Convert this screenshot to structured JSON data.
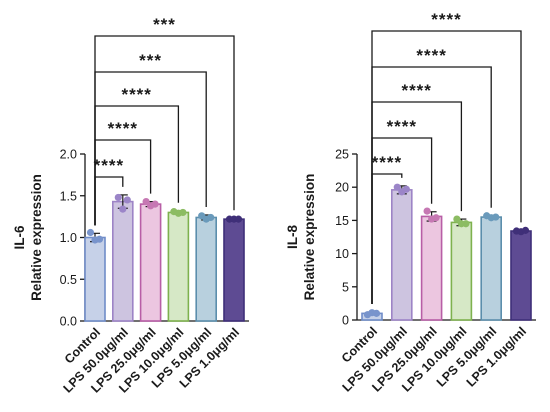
{
  "chart_data": [
    {
      "type": "bar",
      "title": "",
      "xlabel": "",
      "ylabel_lines": [
        "IL-6",
        "Relative expression"
      ],
      "ylim": [
        0,
        2.0
      ],
      "yticks": [
        "0.0",
        "0.5",
        "1.0",
        "1.5",
        "2.0"
      ],
      "categories": [
        "Control",
        "LPS 50.0μg/ml",
        "LPS 25.0μg/ml",
        "LPS 10.0μg/ml",
        "LPS 5.0μg/ml",
        "LPS 1.0μg/ml"
      ],
      "values": [
        1.0,
        1.43,
        1.4,
        1.3,
        1.24,
        1.22
      ],
      "errors": [
        0.05,
        0.08,
        0.03,
        0.02,
        0.03,
        0.01
      ],
      "points": [
        [
          1.06,
          0.97,
          0.98
        ],
        [
          1.48,
          1.34,
          1.45
        ],
        [
          1.43,
          1.38,
          1.4
        ],
        [
          1.31,
          1.29,
          1.3
        ],
        [
          1.26,
          1.22,
          1.24
        ],
        [
          1.22,
          1.22,
          1.22
        ]
      ],
      "comparisons": [
        {
          "from": "Control",
          "to": "LPS 50.0μg/ml",
          "label": "****"
        },
        {
          "from": "Control",
          "to": "LPS 25.0μg/ml",
          "label": "****"
        },
        {
          "from": "Control",
          "to": "LPS 10.0μg/ml",
          "label": "****"
        },
        {
          "from": "Control",
          "to": "LPS 5.0μg/ml",
          "label": "***"
        },
        {
          "from": "Control",
          "to": "LPS 1.0μg/ml",
          "label": "***"
        }
      ],
      "colors": {
        "fill": [
          "#c6d1e8",
          "#cdc4e0",
          "#ecc6e0",
          "#d6e8c6",
          "#b8d0de",
          "#5e4b93"
        ],
        "stroke": [
          "#6f8cc8",
          "#9d84c6",
          "#b85ea6",
          "#7eb14e",
          "#5b8eac",
          "#3f2f78"
        ],
        "points": [
          "#7894cc",
          "#9b85c8",
          "#c678b3",
          "#8cbc63",
          "#6a9abb",
          "#3f2f78"
        ]
      }
    },
    {
      "type": "bar",
      "title": "",
      "xlabel": "",
      "ylabel_lines": [
        "IL-8",
        "Relative expression"
      ],
      "ylim": [
        0,
        25
      ],
      "yticks": [
        "0",
        "5",
        "10",
        "15",
        "20",
        "25"
      ],
      "categories": [
        "Control",
        "LPS 50.0μg/ml",
        "LPS 25.0μg/ml",
        "LPS 10.0μg/ml",
        "LPS 5.0μg/ml",
        "LPS 1.0μg/ml"
      ],
      "values": [
        1.0,
        19.6,
        15.6,
        14.7,
        15.5,
        13.4
      ],
      "errors": [
        0.2,
        0.6,
        0.7,
        0.5,
        0.2,
        0.1
      ],
      "points": [
        [
          0.8,
          1.1,
          1.0
        ],
        [
          20.0,
          19.3,
          19.7
        ],
        [
          16.4,
          15.2,
          15.4
        ],
        [
          15.2,
          14.5,
          14.5
        ],
        [
          15.7,
          15.4,
          15.5
        ],
        [
          13.4,
          13.3,
          13.5
        ]
      ],
      "comparisons": [
        {
          "from": "Control",
          "to": "LPS 50.0μg/ml",
          "label": "****"
        },
        {
          "from": "Control",
          "to": "LPS 25.0μg/ml",
          "label": "****"
        },
        {
          "from": "Control",
          "to": "LPS 10.0μg/ml",
          "label": "****"
        },
        {
          "from": "Control",
          "to": "LPS 5.0μg/ml",
          "label": "****"
        },
        {
          "from": "Control",
          "to": "LPS 1.0μg/ml",
          "label": "****"
        }
      ],
      "colors": {
        "fill": [
          "#c6d1e8",
          "#cdc4e0",
          "#ecc6e0",
          "#d6e8c6",
          "#b8d0de",
          "#5e4b93"
        ],
        "stroke": [
          "#6f8cc8",
          "#9d84c6",
          "#b85ea6",
          "#7eb14e",
          "#5b8eac",
          "#3f2f78"
        ],
        "points": [
          "#7894cc",
          "#9b85c8",
          "#c678b3",
          "#8cbc63",
          "#6a9abb",
          "#3f2f78"
        ]
      }
    }
  ]
}
